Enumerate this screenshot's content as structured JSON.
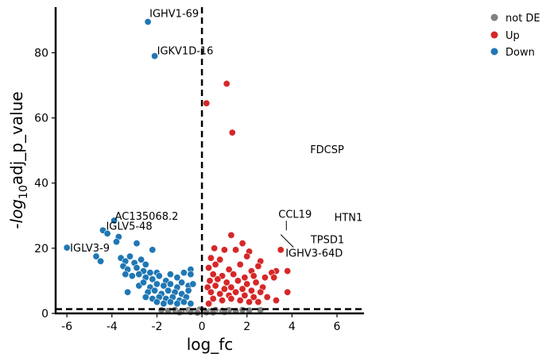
{
  "chart_data": {
    "type": "scatter",
    "xlabel": "log_fc",
    "ylabel": "adj_p_value",
    "ylabel_prefix": "-log",
    "ylabel_subscript": "10",
    "xlim": [
      -6.5,
      7.2
    ],
    "ylim": [
      0,
      94
    ],
    "x_ticks": [
      -6,
      -4,
      -2,
      0,
      2,
      4,
      6
    ],
    "y_ticks": [
      0,
      20,
      40,
      60,
      80
    ],
    "x_tick_labels": [
      "-6",
      "-4",
      "-2",
      "0",
      "2",
      "4",
      "6"
    ],
    "y_tick_labels": [
      "0",
      "20",
      "40",
      "60",
      "80"
    ],
    "threshold_x": 0,
    "threshold_y": 1.3,
    "colors": {
      "not DE": "#808080",
      "Up": "#d62728",
      "Down": "#1f77b4"
    },
    "legend": {
      "position": "top-right",
      "entries": [
        "not DE",
        "Up",
        "Down"
      ]
    },
    "labeled_points": [
      {
        "gene": "IGHV1-69",
        "x": -2.4,
        "y": 89.5,
        "group": "Down"
      },
      {
        "gene": "IGKV1D-16",
        "x": -2.1,
        "y": 79,
        "group": "Down"
      },
      {
        "gene": "AC135068.2",
        "x": -3.9,
        "y": 28.5,
        "group": "Down"
      },
      {
        "gene": "IGLV5-48",
        "x": -4.4,
        "y": 25.5,
        "group": "Down"
      },
      {
        "gene": "IGLV3-9",
        "x": -6.0,
        "y": 20.2,
        "group": "Down"
      },
      {
        "gene": "FDCSP",
        "x": 4.7,
        "y": 48.5,
        "group": "Up"
      },
      {
        "gene": "CCL19",
        "x": 3.75,
        "y": 25.5,
        "group": "Up"
      },
      {
        "gene": "HTN1",
        "x": 6.55,
        "y": 25.0,
        "group": "Up"
      },
      {
        "gene": "TPSD1",
        "x": 4.9,
        "y": 24.5,
        "group": "Up"
      },
      {
        "gene": "IGHV3-64D",
        "x": 3.5,
        "y": 24.2,
        "group": "Up"
      }
    ],
    "points": {
      "Up": [
        [
          1.1,
          70.5
        ],
        [
          0.2,
          64.5
        ],
        [
          1.35,
          55.5
        ],
        [
          1.3,
          24
        ],
        [
          1.8,
          21.5
        ],
        [
          0.55,
          20
        ],
        [
          1.0,
          19.5
        ],
        [
          1.5,
          19.5
        ],
        [
          2.1,
          19
        ],
        [
          0.4,
          17
        ],
        [
          0.8,
          16.5
        ],
        [
          2.0,
          17.5
        ],
        [
          2.6,
          16
        ],
        [
          3.5,
          19.5
        ],
        [
          3.3,
          13
        ],
        [
          3.8,
          13
        ],
        [
          0.3,
          14
        ],
        [
          0.6,
          15
        ],
        [
          1.2,
          13.5
        ],
        [
          1.7,
          15
        ],
        [
          2.2,
          13
        ],
        [
          2.5,
          14.5
        ],
        [
          3.1,
          12.5
        ],
        [
          0.5,
          12
        ],
        [
          0.9,
          11.5
        ],
        [
          1.4,
          12
        ],
        [
          1.9,
          11
        ],
        [
          2.3,
          11.5
        ],
        [
          2.8,
          11
        ],
        [
          3.2,
          11
        ],
        [
          0.35,
          10
        ],
        [
          0.7,
          10.5
        ],
        [
          1.1,
          9.5
        ],
        [
          1.6,
          10
        ],
        [
          2.0,
          9
        ],
        [
          2.4,
          9.5
        ],
        [
          2.7,
          8
        ],
        [
          0.25,
          8
        ],
        [
          0.6,
          8.5
        ],
        [
          1.0,
          7.5
        ],
        [
          1.3,
          8
        ],
        [
          1.8,
          7.5
        ],
        [
          2.2,
          7
        ],
        [
          2.6,
          6.5
        ],
        [
          3.8,
          6.5
        ],
        [
          3.3,
          4
        ],
        [
          0.4,
          6.5
        ],
        [
          0.8,
          6
        ],
        [
          1.2,
          5.5
        ],
        [
          1.5,
          6.5
        ],
        [
          1.9,
          5.5
        ],
        [
          2.3,
          5
        ],
        [
          2.9,
          5
        ],
        [
          0.5,
          4.5
        ],
        [
          0.9,
          4
        ],
        [
          1.3,
          4.5
        ],
        [
          1.7,
          4
        ],
        [
          2.1,
          3.5
        ],
        [
          2.5,
          3.5
        ],
        [
          0.3,
          3
        ]
      ],
      "Down": [
        [
          -2.4,
          89.5
        ],
        [
          -2.1,
          79
        ],
        [
          -3.9,
          28.5
        ],
        [
          -4.4,
          25.5
        ],
        [
          -6.0,
          20.2
        ],
        [
          -4.2,
          24.5
        ],
        [
          -3.7,
          23.5
        ],
        [
          -3.8,
          22
        ],
        [
          -2.9,
          21.5
        ],
        [
          -2.2,
          19.5
        ],
        [
          -4.7,
          17.5
        ],
        [
          -4.5,
          16
        ],
        [
          -3.6,
          17
        ],
        [
          -3.4,
          16
        ],
        [
          -3.2,
          17.5
        ],
        [
          -3.0,
          15.5
        ],
        [
          -2.7,
          16.5
        ],
        [
          -2.5,
          15
        ],
        [
          -3.5,
          14.5
        ],
        [
          -3.3,
          13.5
        ],
        [
          -2.9,
          14
        ],
        [
          -2.6,
          13
        ],
        [
          -2.3,
          12.5
        ],
        [
          -2.0,
          12.5
        ],
        [
          -3.4,
          12
        ],
        [
          -3.1,
          11.5
        ],
        [
          -2.8,
          12
        ],
        [
          -2.5,
          11
        ],
        [
          -2.2,
          10.5
        ],
        [
          -1.9,
          11.5
        ],
        [
          -1.4,
          12
        ],
        [
          -1.1,
          11
        ],
        [
          -0.8,
          12.5
        ],
        [
          -0.5,
          13.5
        ],
        [
          -0.5,
          12
        ],
        [
          -1.6,
          10
        ],
        [
          -3.3,
          6.5
        ],
        [
          -2.8,
          8.5
        ],
        [
          -2.6,
          9.5
        ],
        [
          -2.3,
          8
        ],
        [
          -2.0,
          9
        ],
        [
          -1.7,
          8.5
        ],
        [
          -1.4,
          9
        ],
        [
          -1.1,
          8
        ],
        [
          -0.9,
          9.5
        ],
        [
          -0.6,
          8.5
        ],
        [
          -0.4,
          9
        ],
        [
          -2.4,
          6.5
        ],
        [
          -2.1,
          7
        ],
        [
          -1.8,
          6
        ],
        [
          -1.5,
          7
        ],
        [
          -1.2,
          6.5
        ],
        [
          -0.9,
          6
        ],
        [
          -0.6,
          7
        ],
        [
          -2.5,
          5
        ],
        [
          -2.2,
          4.5
        ],
        [
          -1.9,
          5
        ],
        [
          -1.6,
          4.5
        ],
        [
          -1.3,
          5
        ],
        [
          -1.0,
          4
        ],
        [
          -0.7,
          5
        ],
        [
          -2.0,
          3.5
        ],
        [
          -1.7,
          3
        ],
        [
          -1.4,
          3.5
        ],
        [
          -1.1,
          3
        ],
        [
          -0.8,
          3.5
        ],
        [
          -0.5,
          3
        ]
      ],
      "not DE": [
        [
          -1.8,
          1.0
        ],
        [
          -1.5,
          0.8
        ],
        [
          -1.2,
          1.1
        ],
        [
          -0.9,
          0.6
        ],
        [
          -0.6,
          1.0
        ],
        [
          -0.3,
          0.7
        ],
        [
          -0.1,
          1.2
        ],
        [
          0.1,
          0.9
        ],
        [
          0.3,
          0.6
        ],
        [
          0.6,
          1.1
        ],
        [
          0.9,
          0.8
        ],
        [
          1.2,
          1.0
        ],
        [
          1.5,
          0.7
        ],
        [
          1.8,
          1.1
        ],
        [
          2.1,
          0.9
        ],
        [
          2.6,
          1.0
        ],
        [
          -1.0,
          0.3
        ],
        [
          -0.5,
          0.4
        ],
        [
          0.5,
          0.3
        ],
        [
          1.0,
          0.4
        ],
        [
          -0.2,
          0.2
        ],
        [
          0.2,
          0.3
        ]
      ]
    }
  }
}
